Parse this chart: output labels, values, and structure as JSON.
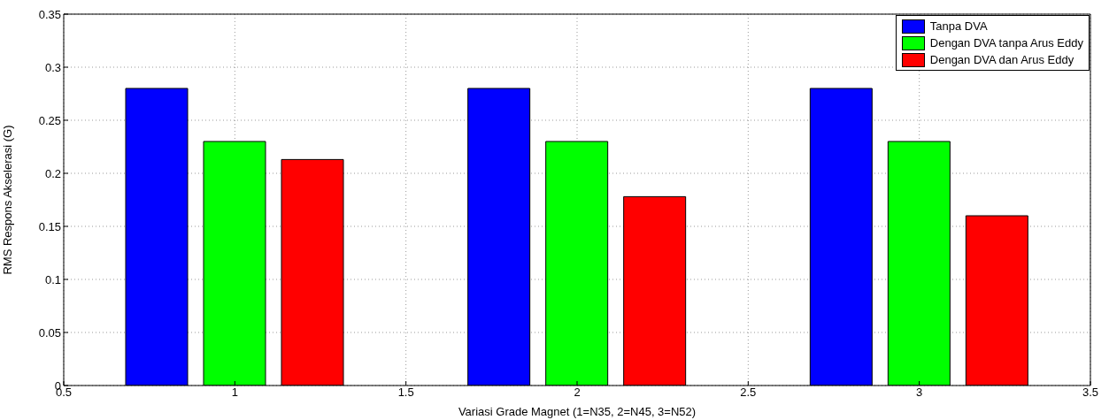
{
  "chart_data": {
    "type": "bar",
    "x": [
      1,
      2,
      3
    ],
    "xlabel": "Variasi Grade Magnet (1=N35, 2=N45, 3=N52)",
    "ylabel": "RMS Respons Akselerasi (G)",
    "series": [
      {
        "name": "Tanpa DVA",
        "color": "#0000ff",
        "values": [
          0.28,
          0.28,
          0.28
        ]
      },
      {
        "name": "Dengan DVA tanpa Arus Eddy",
        "color": "#00ff00",
        "values": [
          0.23,
          0.23,
          0.23
        ]
      },
      {
        "name": "Dengan DVA dan Arus Eddy",
        "color": "#ff0000",
        "values": [
          0.213,
          0.178,
          0.16
        ]
      }
    ],
    "xlim": [
      0.5,
      3.5
    ],
    "xticks": [
      0.5,
      1,
      1.5,
      2,
      2.5,
      3,
      3.5
    ],
    "ylim": [
      0,
      0.35
    ],
    "yticks": [
      0,
      0.05,
      0.1,
      0.15,
      0.2,
      0.25,
      0.3,
      0.35
    ],
    "grid": true,
    "legend": "top right"
  }
}
